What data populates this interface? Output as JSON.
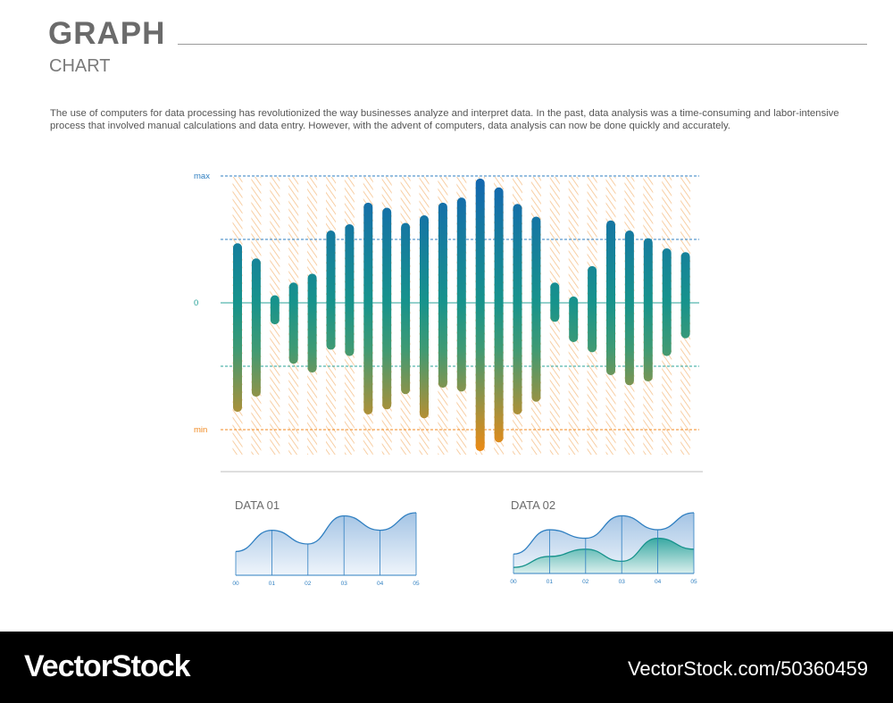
{
  "header": {
    "title": "GRAPH",
    "subtitle": "CHART",
    "description": "The use of computers for data processing has revolutionized the way businesses analyze and interpret data. In the past, data analysis was a time-consuming and labor-intensive process that involved manual calculations and data entry. However, with the advent of computers, data analysis can now be done quickly and accurately."
  },
  "colors": {
    "top": "#1466b0",
    "middle": "#17938c",
    "bottom": "#f28a12",
    "hatch": "#f6c38e",
    "grid_blue": "#2f7fc1",
    "grid_teal": "#2aa39a",
    "grid_orange": "#f08a22"
  },
  "chart_data": [
    {
      "type": "bar",
      "title": "",
      "y_labels": {
        "max": "max",
        "zero": "0",
        "min": "min"
      },
      "ylim": [
        -1,
        1
      ],
      "guide_lines": [
        1,
        0.5,
        0,
        -0.5,
        -1
      ],
      "ranges": [
        {
          "high": 0.47,
          "low": -0.86
        },
        {
          "high": 0.35,
          "low": -0.74
        },
        {
          "high": 0.06,
          "low": -0.17
        },
        {
          "high": 0.16,
          "low": -0.48
        },
        {
          "high": 0.23,
          "low": -0.55
        },
        {
          "high": 0.57,
          "low": -0.37
        },
        {
          "high": 0.62,
          "low": -0.42
        },
        {
          "high": 0.79,
          "low": -0.88
        },
        {
          "high": 0.75,
          "low": -0.84
        },
        {
          "high": 0.63,
          "low": -0.72
        },
        {
          "high": 0.69,
          "low": -0.91
        },
        {
          "high": 0.79,
          "low": -0.67
        },
        {
          "high": 0.83,
          "low": -0.7
        },
        {
          "high": 0.98,
          "low": -1.17
        },
        {
          "high": 0.91,
          "low": -1.1
        },
        {
          "high": 0.78,
          "low": -0.88
        },
        {
          "high": 0.68,
          "low": -0.78
        },
        {
          "high": 0.16,
          "low": -0.15
        },
        {
          "high": 0.05,
          "low": -0.31
        },
        {
          "high": 0.29,
          "low": -0.39
        },
        {
          "high": 0.65,
          "low": -0.57
        },
        {
          "high": 0.57,
          "low": -0.65
        },
        {
          "high": 0.51,
          "low": -0.62
        },
        {
          "high": 0.43,
          "low": -0.42
        },
        {
          "high": 0.4,
          "low": -0.28
        }
      ]
    },
    {
      "type": "area",
      "title": "DATA 01",
      "categories": [
        "00",
        "01",
        "02",
        "03",
        "04",
        "05"
      ],
      "ylim": [
        0,
        1
      ],
      "series": [
        {
          "values": [
            0.38,
            0.72,
            0.5,
            0.95,
            0.72,
            1.0
          ]
        }
      ]
    },
    {
      "type": "area",
      "title": "DATA 02",
      "categories": [
        "00",
        "01",
        "02",
        "03",
        "04",
        "05"
      ],
      "ylim": [
        0,
        1
      ],
      "series": [
        {
          "values": [
            0.32,
            0.72,
            0.58,
            0.95,
            0.72,
            1.0
          ]
        },
        {
          "values": [
            0.1,
            0.28,
            0.4,
            0.2,
            0.58,
            0.4
          ]
        }
      ]
    }
  ],
  "footer": {
    "brand": "VectorStock",
    "url": "VectorStock.com/50360459"
  }
}
